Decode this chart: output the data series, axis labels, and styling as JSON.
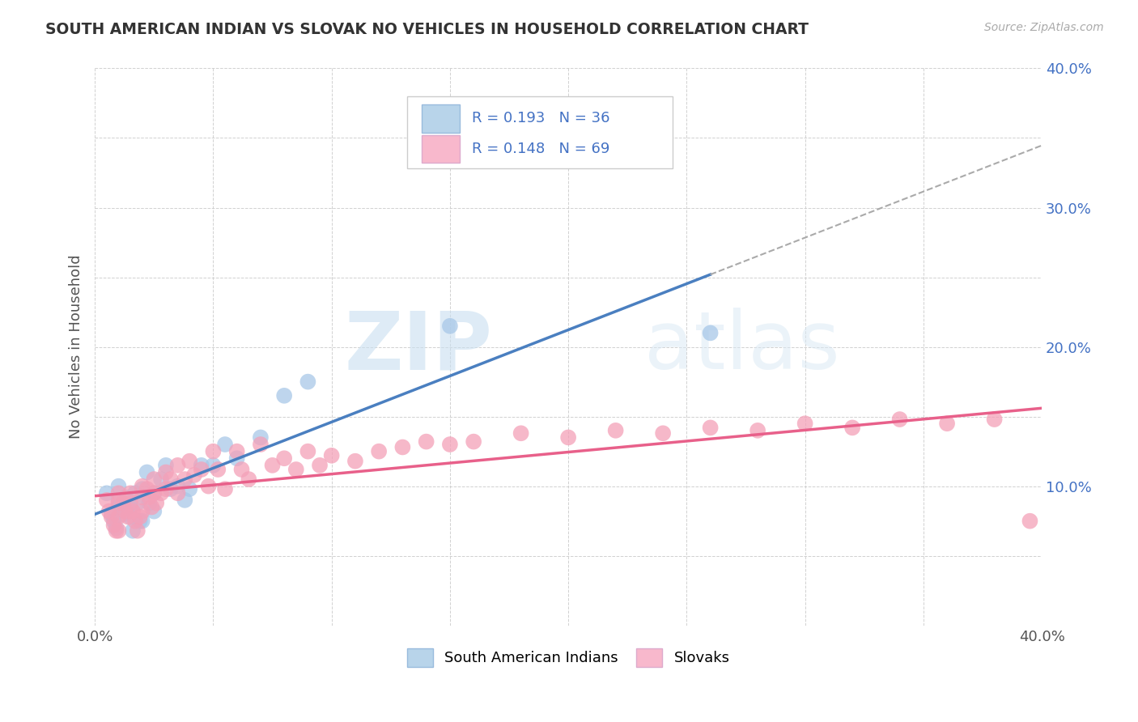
{
  "title": "SOUTH AMERICAN INDIAN VS SLOVAK NO VEHICLES IN HOUSEHOLD CORRELATION CHART",
  "source": "Source: ZipAtlas.com",
  "ylabel": "No Vehicles in Household",
  "xlim": [
    0.0,
    0.4
  ],
  "ylim": [
    0.0,
    0.4
  ],
  "x_ticks": [
    0.0,
    0.05,
    0.1,
    0.15,
    0.2,
    0.25,
    0.3,
    0.35,
    0.4
  ],
  "y_ticks": [
    0.0,
    0.05,
    0.1,
    0.15,
    0.2,
    0.25,
    0.3,
    0.35,
    0.4
  ],
  "x_tick_labels": [
    "0.0%",
    "",
    "",
    "",
    "",
    "",
    "",
    "",
    "40.0%"
  ],
  "y_tick_labels": [
    "",
    "",
    "10.0%",
    "",
    "20.0%",
    "",
    "30.0%",
    "",
    "40.0%"
  ],
  "r_blue": 0.193,
  "n_blue": 36,
  "r_pink": 0.148,
  "n_pink": 69,
  "blue_color": "#a8c8e8",
  "pink_color": "#f4a0b8",
  "blue_line_color": "#4a7fc0",
  "pink_line_color": "#e8608a",
  "legend_blue_fill": "#b8d4ea",
  "legend_pink_fill": "#f8b8cc",
  "watermark_zip": "ZIP",
  "watermark_atlas": "atlas",
  "blue_scatter_x": [
    0.005,
    0.007,
    0.008,
    0.009,
    0.01,
    0.01,
    0.01,
    0.012,
    0.013,
    0.015,
    0.015,
    0.016,
    0.017,
    0.018,
    0.019,
    0.02,
    0.02,
    0.022,
    0.023,
    0.025,
    0.025,
    0.028,
    0.03,
    0.032,
    0.035,
    0.038,
    0.04,
    0.045,
    0.05,
    0.055,
    0.06,
    0.07,
    0.08,
    0.09,
    0.15,
    0.26
  ],
  "blue_scatter_y": [
    0.095,
    0.08,
    0.075,
    0.07,
    0.1,
    0.09,
    0.085,
    0.08,
    0.092,
    0.085,
    0.078,
    0.068,
    0.095,
    0.088,
    0.075,
    0.098,
    0.075,
    0.11,
    0.088,
    0.095,
    0.082,
    0.105,
    0.115,
    0.098,
    0.1,
    0.09,
    0.098,
    0.115,
    0.115,
    0.13,
    0.12,
    0.135,
    0.165,
    0.175,
    0.215,
    0.21
  ],
  "pink_scatter_x": [
    0.005,
    0.006,
    0.007,
    0.008,
    0.009,
    0.01,
    0.01,
    0.01,
    0.01,
    0.012,
    0.013,
    0.014,
    0.015,
    0.015,
    0.016,
    0.017,
    0.018,
    0.019,
    0.02,
    0.02,
    0.02,
    0.022,
    0.023,
    0.024,
    0.025,
    0.025,
    0.026,
    0.028,
    0.03,
    0.03,
    0.032,
    0.035,
    0.035,
    0.038,
    0.04,
    0.042,
    0.045,
    0.048,
    0.05,
    0.052,
    0.055,
    0.06,
    0.062,
    0.065,
    0.07,
    0.075,
    0.08,
    0.085,
    0.09,
    0.095,
    0.1,
    0.11,
    0.12,
    0.13,
    0.14,
    0.15,
    0.16,
    0.18,
    0.2,
    0.22,
    0.24,
    0.26,
    0.28,
    0.3,
    0.32,
    0.34,
    0.36,
    0.38,
    0.395
  ],
  "pink_scatter_y": [
    0.09,
    0.082,
    0.078,
    0.072,
    0.068,
    0.095,
    0.088,
    0.078,
    0.068,
    0.088,
    0.082,
    0.078,
    0.095,
    0.088,
    0.082,
    0.075,
    0.068,
    0.078,
    0.1,
    0.092,
    0.082,
    0.098,
    0.092,
    0.085,
    0.105,
    0.095,
    0.088,
    0.095,
    0.11,
    0.098,
    0.105,
    0.115,
    0.095,
    0.105,
    0.118,
    0.108,
    0.112,
    0.1,
    0.125,
    0.112,
    0.098,
    0.125,
    0.112,
    0.105,
    0.13,
    0.115,
    0.12,
    0.112,
    0.125,
    0.115,
    0.122,
    0.118,
    0.125,
    0.128,
    0.132,
    0.13,
    0.132,
    0.138,
    0.135,
    0.14,
    0.138,
    0.142,
    0.14,
    0.145,
    0.142,
    0.148,
    0.145,
    0.148,
    0.075
  ]
}
